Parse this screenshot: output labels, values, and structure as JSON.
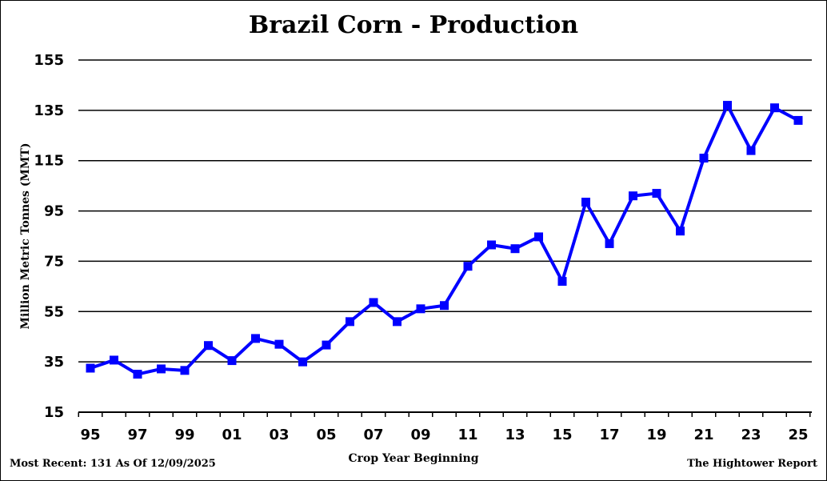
{
  "chart_data": {
    "type": "line",
    "title": "Brazil Corn - Production",
    "xlabel": "Crop Year Beginning",
    "ylabel": "Million Metric Tonnes (MMT)",
    "ylim": [
      15,
      155
    ],
    "yticks": [
      15,
      35,
      55,
      75,
      95,
      115,
      135,
      155
    ],
    "x_tick_labels": [
      "95",
      "97",
      "99",
      "01",
      "03",
      "05",
      "07",
      "09",
      "11",
      "13",
      "15",
      "17",
      "19",
      "21",
      "23",
      "25"
    ],
    "grid": true,
    "categories": [
      "95",
      "96",
      "97",
      "98",
      "99",
      "00",
      "01",
      "02",
      "03",
      "04",
      "05",
      "06",
      "07",
      "08",
      "09",
      "10",
      "11",
      "12",
      "13",
      "14",
      "15",
      "16",
      "17",
      "18",
      "19",
      "20",
      "21",
      "22",
      "23",
      "24",
      "25"
    ],
    "series": [
      {
        "color": "#0000ff",
        "values": [
          32.5,
          35.7,
          30.1,
          32.2,
          31.6,
          41.5,
          35.5,
          44.3,
          42.0,
          35.0,
          41.7,
          51.0,
          58.6,
          51.0,
          56.1,
          57.4,
          73.0,
          81.5,
          80.0,
          84.7,
          67.0,
          98.5,
          82.0,
          101.0,
          102.0,
          87.0,
          116.0,
          137.0,
          119.0,
          136.0,
          131.0
        ]
      }
    ]
  },
  "footer": {
    "most_recent": "Most Recent: 131 As Of 12/09/2025",
    "source": "The Hightower Report"
  }
}
